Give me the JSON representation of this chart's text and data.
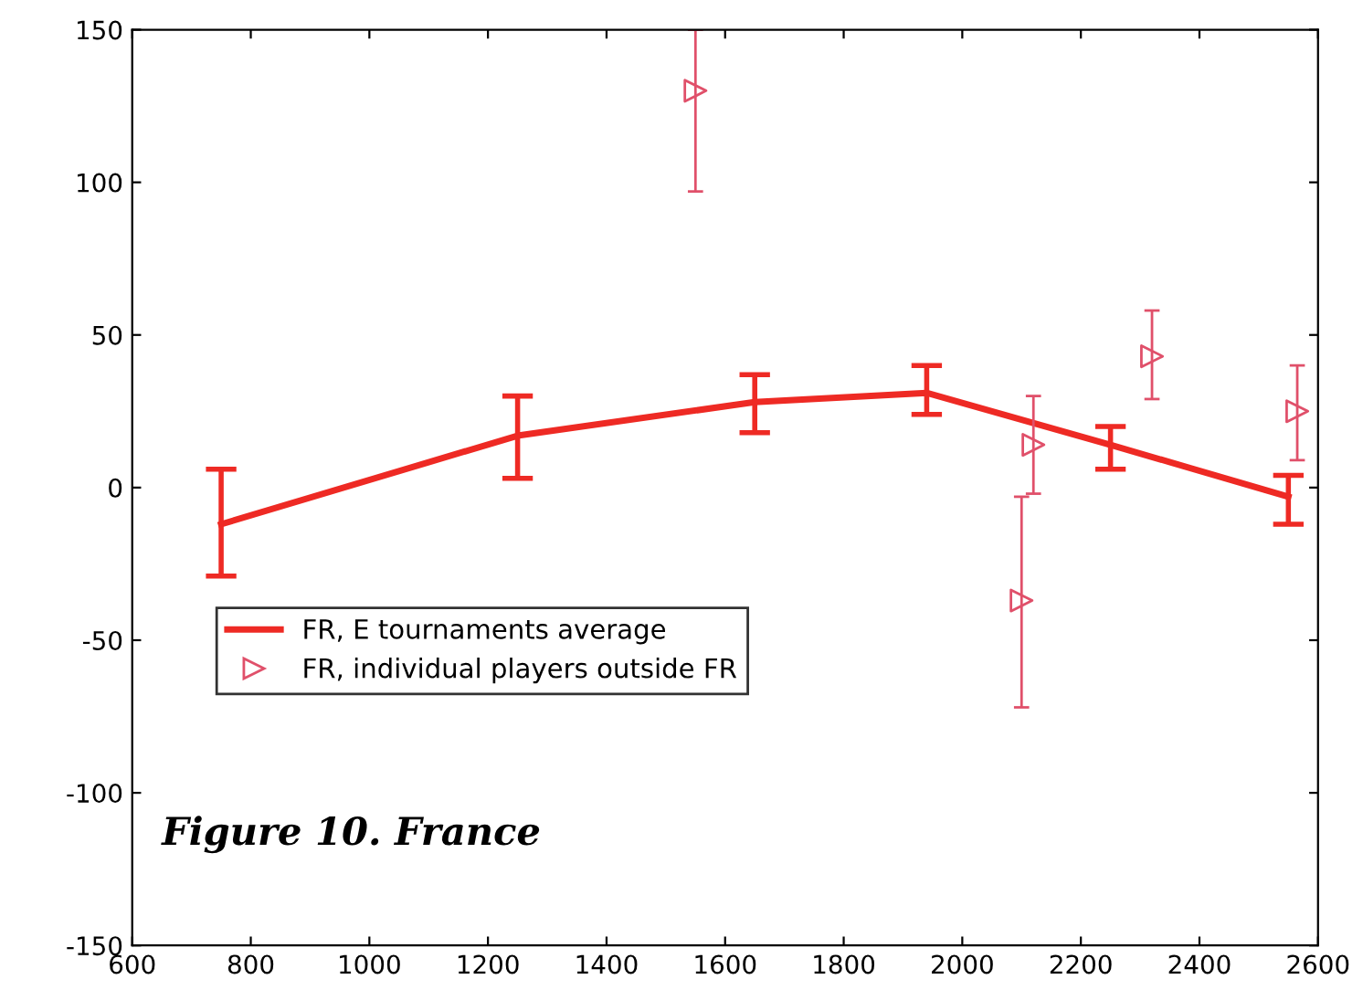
{
  "chart_data": {
    "type": "line",
    "xlim": [
      600,
      2600
    ],
    "ylim": [
      -150,
      150
    ],
    "xticks": [
      600,
      800,
      1000,
      1200,
      1400,
      1600,
      1800,
      2000,
      2200,
      2400,
      2600
    ],
    "yticks": [
      -150,
      -100,
      -50,
      0,
      50,
      100,
      150
    ],
    "grid": false,
    "legend": "bottom left",
    "annotations": [
      "Figure 10. France"
    ],
    "series": [
      {
        "name": "FR, E tournaments average",
        "color": "#ee2a24",
        "marker": "none",
        "line_style": "solid",
        "x": [
          750,
          1250,
          1650,
          1940,
          2250,
          2550
        ],
        "values": [
          -12,
          17,
          28,
          31,
          14,
          -3
        ],
        "errors": [
          [
            -29,
            6
          ],
          [
            3,
            30
          ],
          [
            18,
            37
          ],
          [
            24,
            40
          ],
          [
            6,
            20
          ],
          [
            -12,
            4
          ]
        ]
      },
      {
        "name": "FR, individual players outside FR",
        "type": "scatter",
        "color": "#e0506a",
        "marker": "triangle",
        "x": [
          1550,
          2100,
          2120,
          2320,
          2565
        ],
        "values": [
          130,
          -37,
          14,
          43,
          25
        ],
        "errors": [
          [
            97,
            150
          ],
          [
            -72,
            -3
          ],
          [
            -2,
            30
          ],
          [
            29,
            58
          ],
          [
            9,
            40
          ]
        ]
      }
    ]
  }
}
